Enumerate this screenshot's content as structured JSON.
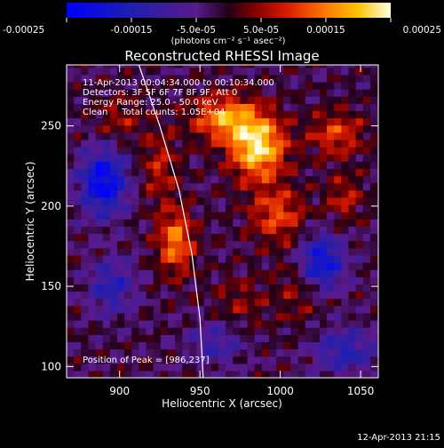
{
  "chart_data": {
    "type": "heatmap",
    "title": "Reconstructed RHESSI Image",
    "xlabel": "Heliocentric X (arcsec)",
    "ylabel": "Heliocentric Y (arcsec)",
    "xlim": [
      867,
      1061
    ],
    "ylim": [
      93,
      288
    ],
    "x_ticks": [
      900,
      950,
      1000,
      1050
    ],
    "y_ticks": [
      100,
      150,
      200,
      250
    ],
    "colorbar": {
      "min": -0.00025,
      "max": 0.00025,
      "tick_values": [
        -0.00025,
        -0.00015,
        -5e-05,
        5e-05,
        0.00015,
        0.00025
      ],
      "tick_labels": [
        "-0.00025",
        "-0.00015",
        "-5.0e-05",
        "5.0e-05",
        "0.00015",
        "0.00025"
      ],
      "units": "(photons cm⁻² s⁻¹ asec⁻²)"
    },
    "annotations": [
      "11-Apr-2013 00:04:34.000 to 00:10:34.000",
      "Detectors: 3F 5F 6F 7F 8F 9F, Att 0",
      "Energy Range: 25.0 - 50.0 keV",
      "Clean     Total counts: 1.05E+04"
    ],
    "peak_label": "Position of Peak = [986,237]",
    "peak": [
      986,
      237
    ],
    "limb_curve": [
      [
        912,
        288
      ],
      [
        925,
        250
      ],
      [
        937,
        210
      ],
      [
        945,
        170
      ],
      [
        950,
        130
      ],
      [
        952,
        93
      ]
    ],
    "sources": [
      {
        "x": 986,
        "y": 237,
        "amplitude": 0.00025,
        "sx": 12,
        "sy": 14
      },
      {
        "x": 965,
        "y": 255,
        "amplitude": 0.00018,
        "sx": 14,
        "sy": 10
      },
      {
        "x": 935,
        "y": 178,
        "amplitude": 0.00017,
        "sx": 8,
        "sy": 14
      },
      {
        "x": 998,
        "y": 195,
        "amplitude": 0.00013,
        "sx": 12,
        "sy": 12
      },
      {
        "x": 1035,
        "y": 245,
        "amplitude": 0.00012,
        "sx": 12,
        "sy": 10
      },
      {
        "x": 925,
        "y": 225,
        "amplitude": 9e-05,
        "sx": 8,
        "sy": 16
      },
      {
        "x": 1012,
        "y": 150,
        "amplitude": 7e-05,
        "sx": 10,
        "sy": 16
      },
      {
        "x": 975,
        "y": 140,
        "amplitude": 6e-05,
        "sx": 12,
        "sy": 12
      },
      {
        "x": 1040,
        "y": 205,
        "amplitude": 9e-05,
        "sx": 8,
        "sy": 10
      },
      {
        "x": 900,
        "y": 255,
        "amplitude": 7e-05,
        "sx": 10,
        "sy": 10
      },
      {
        "x": 890,
        "y": 215,
        "amplitude": -0.00022,
        "sx": 10,
        "sy": 14
      },
      {
        "x": 1025,
        "y": 165,
        "amplitude": -0.0002,
        "sx": 10,
        "sy": 12
      },
      {
        "x": 895,
        "y": 150,
        "amplitude": -0.00012,
        "sx": 10,
        "sy": 12
      },
      {
        "x": 1040,
        "y": 110,
        "amplitude": -0.00012,
        "sx": 14,
        "sy": 10
      },
      {
        "x": 960,
        "y": 115,
        "amplitude": -9e-05,
        "sx": 12,
        "sy": 10
      }
    ]
  },
  "footer": {
    "timestamp": "12-Apr-2013 21:15"
  },
  "colors": {
    "background": "#000000",
    "text": "#ffffff",
    "limb": "#ffffff"
  }
}
